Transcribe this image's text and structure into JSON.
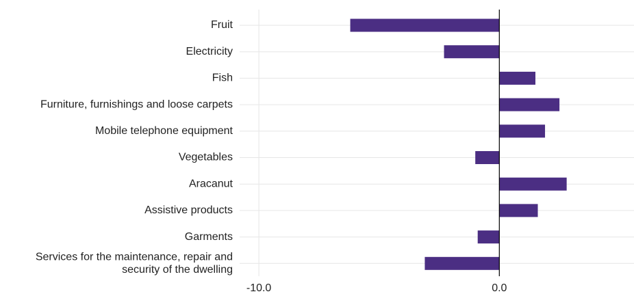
{
  "chart_data": {
    "type": "bar",
    "orientation": "horizontal",
    "title": "",
    "xlabel": "",
    "ylabel": "",
    "categories": [
      "Fruit",
      "Electricity",
      "Fish",
      "Furniture, furnishings and loose carpets",
      "Mobile telephone equipment",
      "Vegetables",
      "Aracanut",
      "Assistive products",
      "Garments",
      "Services for the maintenance, repair and security of the dwelling"
    ],
    "values": [
      -6.2,
      -2.3,
      1.5,
      2.5,
      1.9,
      -1.0,
      2.8,
      1.6,
      -0.9,
      -3.1
    ],
    "xlim": [
      -10.8,
      5.6
    ],
    "xticks": [
      -10.0,
      0.0
    ],
    "xtick_labels": [
      "-10.0",
      "0.0"
    ],
    "grid": true,
    "bar_color": "#4b2e83"
  }
}
